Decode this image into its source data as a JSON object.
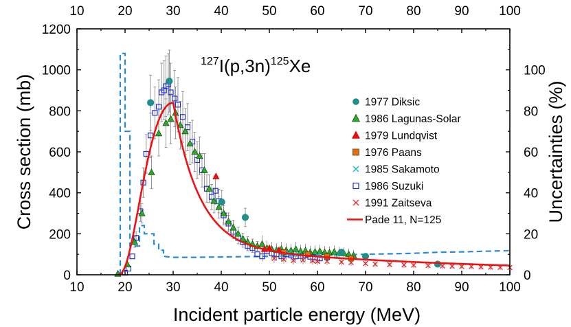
{
  "chart_data": {
    "type": "scatter",
    "reaction": {
      "sup1": "127",
      "mid": "I(p,3n)",
      "sup2": "125",
      "end": "Xe"
    },
    "xlabel": "Incident particle energy (MeV)",
    "ylabel": "Cross section (mb)",
    "y2label": "Uncertainties (%)",
    "xlim": [
      10,
      100
    ],
    "ylim": [
      0,
      1200
    ],
    "y2lim": [
      0,
      120
    ],
    "xticks": [
      "10",
      "20",
      "30",
      "40",
      "50",
      "60",
      "70",
      "80",
      "90",
      "100"
    ],
    "yticks": [
      "0",
      "200",
      "400",
      "600",
      "800",
      "1000",
      "1200"
    ],
    "y2ticks": [
      "0",
      "20",
      "40",
      "60",
      "80",
      "100"
    ],
    "colors": {
      "diksic": "#1f8f8a",
      "lagunas": "#2ea82e",
      "lundqvist": "#e01010",
      "paans": "#e07010",
      "sakamoto": "#18b8d0",
      "suzuki": "#2030d0",
      "zaitseva": "#e03030",
      "pade": "#ee1111",
      "uncert": "#2a8ad4"
    },
    "series": [
      {
        "key": "diksic",
        "name": "1977 Diksic",
        "marker": "circle",
        "points": [
          [
            25.3,
            840
          ],
          [
            29.2,
            945
          ],
          [
            40.1,
            355
          ],
          [
            45.0,
            280
          ],
          [
            65.0,
            110
          ],
          [
            70.0,
            90
          ],
          [
            85.0,
            52
          ]
        ]
      },
      {
        "key": "lagunas",
        "name": "1986 Lagunas-Solar",
        "marker": "triangle",
        "points": [
          [
            18.5,
            5
          ],
          [
            20.5,
            50
          ],
          [
            22.0,
            160
          ],
          [
            23.5,
            300
          ],
          [
            25.5,
            500
          ],
          [
            27.0,
            690
          ],
          [
            28.5,
            740
          ],
          [
            29.5,
            760
          ],
          [
            30.5,
            790
          ],
          [
            31.5,
            730
          ],
          [
            32.5,
            700
          ],
          [
            33.5,
            640
          ],
          [
            34.5,
            600
          ],
          [
            35.5,
            580
          ],
          [
            36.5,
            510
          ],
          [
            37.5,
            420
          ],
          [
            38.5,
            360
          ],
          [
            39.5,
            330
          ],
          [
            40.5,
            300
          ],
          [
            41.5,
            260
          ],
          [
            42.5,
            230
          ],
          [
            43.5,
            200
          ],
          [
            44.5,
            175
          ],
          [
            45.5,
            160
          ],
          [
            46.5,
            150
          ],
          [
            47.5,
            140
          ],
          [
            48.5,
            150
          ],
          [
            49.5,
            130
          ],
          [
            50.5,
            125
          ],
          [
            51.5,
            120
          ],
          [
            52.5,
            125
          ],
          [
            53.5,
            120
          ],
          [
            54.5,
            118
          ],
          [
            55.5,
            125
          ],
          [
            56.5,
            115
          ],
          [
            57.5,
            118
          ],
          [
            58.5,
            110
          ],
          [
            59.5,
            112
          ],
          [
            60.5,
            115
          ],
          [
            61.5,
            110
          ],
          [
            62.5,
            108
          ],
          [
            63.5,
            112
          ],
          [
            64.5,
            106
          ],
          [
            65.5,
            105
          ],
          [
            66.5,
            100
          ],
          [
            67.5,
            95
          ]
        ]
      },
      {
        "key": "lundqvist",
        "name": "1979 Lundqvist",
        "marker": "triangle",
        "points": [
          [
            38.9,
            480
          ],
          [
            49.0,
            125
          ],
          [
            50.0,
            130
          ],
          [
            52.0,
            120
          ]
        ]
      },
      {
        "key": "paans",
        "name": "1976 Paans",
        "marker": "square",
        "points": [
          [
            53.0,
            110
          ],
          [
            58.0,
            100
          ],
          [
            62.0,
            90
          ],
          [
            67.0,
            80
          ]
        ]
      },
      {
        "key": "sakamoto",
        "name": "1985 Sakamoto",
        "marker": "x",
        "points": [
          [
            54.0,
            105
          ],
          [
            56.0,
            100
          ],
          [
            60.0,
            95
          ],
          [
            64.0,
            90
          ]
        ]
      },
      {
        "key": "suzuki",
        "name": "1986 Suzuki",
        "marker": "opensquare",
        "points": [
          [
            20.0,
            10
          ],
          [
            20.7,
            30
          ],
          [
            21.5,
            90
          ],
          [
            22.3,
            180
          ],
          [
            23.2,
            310
          ],
          [
            23.8,
            450
          ],
          [
            24.4,
            590
          ],
          [
            25.3,
            680
          ],
          [
            26.2,
            790
          ],
          [
            27.0,
            820
          ],
          [
            27.6,
            890
          ],
          [
            28.1,
            900
          ],
          [
            28.5,
            920
          ],
          [
            29.0,
            930
          ],
          [
            29.5,
            890
          ],
          [
            30.3,
            860
          ],
          [
            31.0,
            830
          ],
          [
            32.0,
            770
          ],
          [
            33.0,
            720
          ],
          [
            34.0,
            650
          ],
          [
            35.0,
            560
          ],
          [
            36.0,
            510
          ],
          [
            37.0,
            420
          ],
          [
            38.0,
            380
          ],
          [
            38.8,
            410
          ],
          [
            39.5,
            360
          ],
          [
            40.5,
            290
          ],
          [
            41.5,
            250
          ],
          [
            42.5,
            210
          ],
          [
            43.5,
            180
          ],
          [
            44.5,
            160
          ],
          [
            45.5,
            140
          ],
          [
            46.5,
            130
          ],
          [
            47.5,
            100
          ],
          [
            48.5,
            90
          ],
          [
            49.5,
            115
          ],
          [
            50.5,
            105
          ],
          [
            51.5,
            100
          ],
          [
            52.5,
            90
          ],
          [
            53.5,
            100
          ],
          [
            54.5,
            95
          ],
          [
            55.5,
            90
          ],
          [
            56.5,
            92
          ],
          [
            57.5,
            95
          ],
          [
            58.5,
            88
          ],
          [
            59.5,
            85
          ],
          [
            60.5,
            80
          ],
          [
            62.0,
            85
          ]
        ]
      },
      {
        "key": "zaitseva",
        "name": "1991 Zaitseva",
        "marker": "x",
        "points": [
          [
            51.0,
            80
          ],
          [
            53.0,
            75
          ],
          [
            55.0,
            70
          ],
          [
            57.0,
            72
          ],
          [
            59.0,
            68
          ],
          [
            60.0,
            65
          ],
          [
            62.0,
            66
          ],
          [
            65.0,
            62
          ],
          [
            67.0,
            60
          ],
          [
            70.0,
            55
          ],
          [
            72.0,
            52
          ],
          [
            75.0,
            50
          ],
          [
            78.0,
            48
          ],
          [
            80.0,
            47
          ],
          [
            83.0,
            45
          ],
          [
            86.0,
            43
          ],
          [
            88.0,
            42
          ],
          [
            90.0,
            40
          ],
          [
            92.0,
            40
          ],
          [
            94.0,
            38
          ],
          [
            96.0,
            37
          ],
          [
            98.0,
            36
          ],
          [
            100.0,
            35
          ]
        ]
      }
    ],
    "pade": {
      "name": "Pade 11, N=125"
    },
    "uncertainty": {
      "x": [
        19.0,
        19.0,
        20.0,
        20.0,
        21.0,
        21.0,
        23.0,
        23.0,
        24.0,
        24.0,
        26.0,
        26.0,
        27.0,
        27.0,
        28.0,
        28.0,
        30.0,
        35.0,
        40.0,
        50.0,
        60.0,
        70.0,
        80.0,
        85.0,
        90.0,
        95.0,
        100.0
      ],
      "y": [
        0,
        108,
        108,
        70,
        70,
        14,
        14,
        24,
        24,
        20,
        20,
        15,
        15,
        12,
        12,
        9,
        8.5,
        8.5,
        8.7,
        9.0,
        9.5,
        10.0,
        10.5,
        11.0,
        11.2,
        11.5,
        11.8
      ]
    }
  }
}
